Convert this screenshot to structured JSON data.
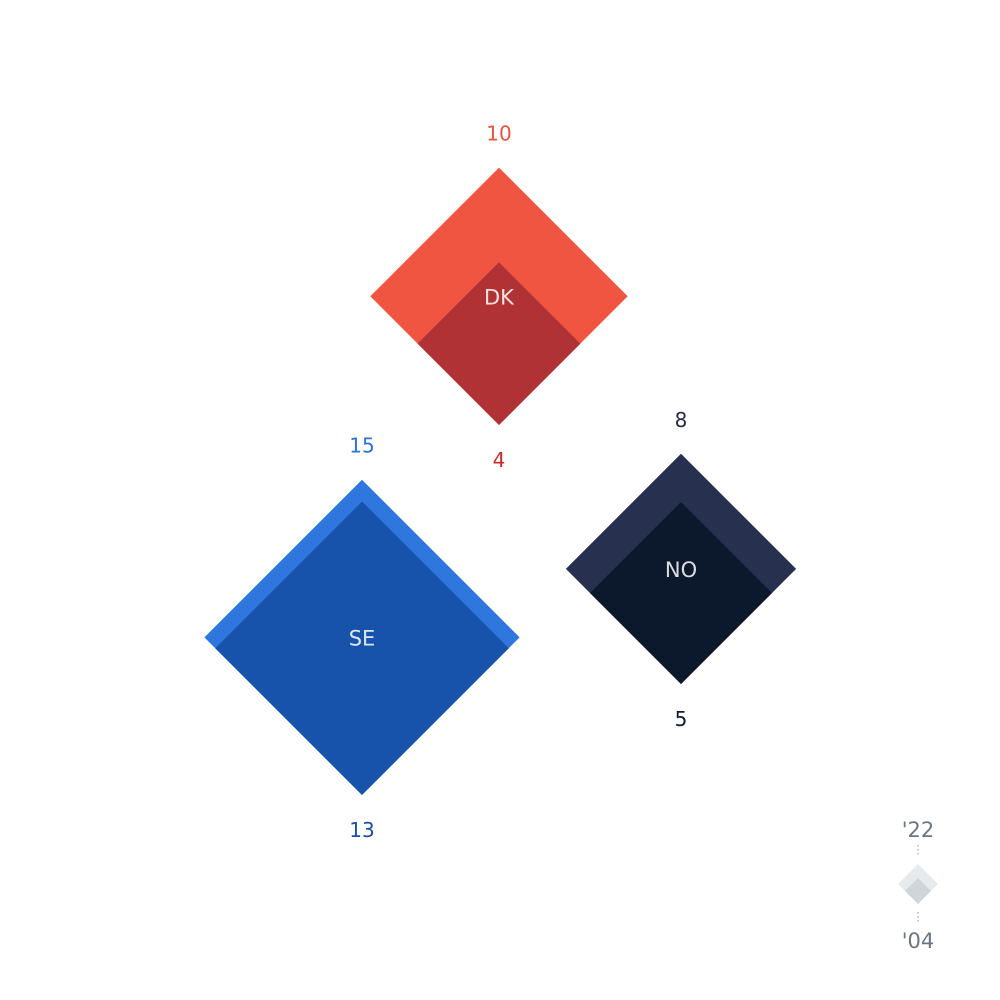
{
  "chart_data": {
    "type": "diamond",
    "series": [
      {
        "name": "DK",
        "label": "DK",
        "value_2022": 10,
        "value_2004": 4,
        "outer_color": "#f05542",
        "inner_color": "#b03235",
        "top_label_color": "#e8553f",
        "bottom_label_color": "#c0302f"
      },
      {
        "name": "SE",
        "label": "SE",
        "value_2022": 15,
        "value_2004": 13,
        "outer_color": "#3076df",
        "inner_color": "#1753ab",
        "top_label_color": "#2f72d6",
        "bottom_label_color": "#1a4f9e"
      },
      {
        "name": "NO",
        "label": "NO",
        "value_2022": 8,
        "value_2004": 5,
        "outer_color": "#27304f",
        "inner_color": "#0c182b",
        "top_label_color": "#222a45",
        "bottom_label_color": "#111a2b"
      }
    ],
    "legend": {
      "top_label": "'22",
      "bottom_label": "'04",
      "outer_color": "#e6eaec",
      "inner_color": "#cfd6da"
    }
  }
}
